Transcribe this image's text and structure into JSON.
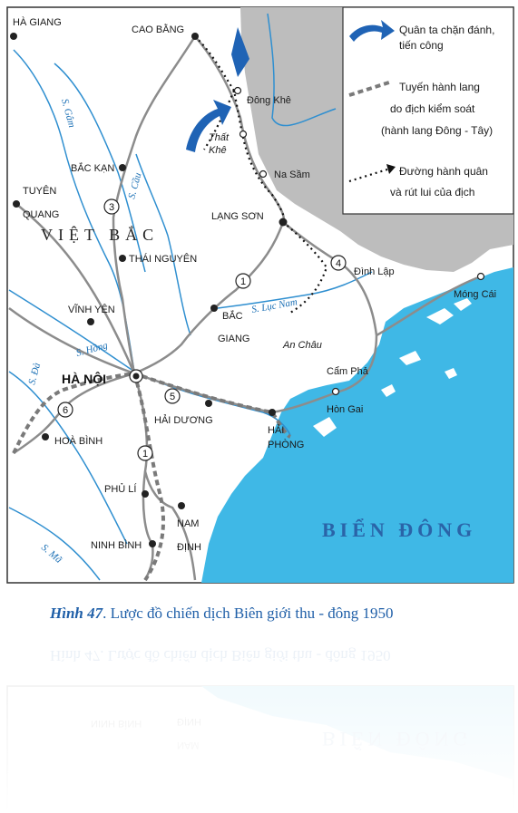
{
  "caption": {
    "figure": "Hình 47",
    "text": ". Lược đồ chiến dịch Biên giới thu - đông 1950"
  },
  "legend": {
    "attack": "Quân ta chặn đánh,",
    "attack2": "tiến công",
    "corridor": "Tuyến hành lang",
    "corridor2": "do địch kiểm soát",
    "corridor3": "(hành lang Đông - Tây)",
    "retreat": "Đường hành quân",
    "retreat2": "và rút lui của địch"
  },
  "places": {
    "ha_giang": "HÀ GIANG",
    "cao_bang": "CAO BẰNG",
    "dong_khe": "Đông Khê",
    "that_khe_1": "Thất",
    "that_khe_2": "Khê",
    "na_sam": "Na Sầm",
    "lang_son": "LẠNG SƠN",
    "bac_kan": "BẮC KẠN",
    "tuyen_quang_1": "TUYÊN",
    "tuyen_quang_2": "QUANG",
    "thai_nguyen": "THÁI NGUYÊN",
    "dinh_lap": "Đình Lập",
    "mong_cai": "Móng Cái",
    "vinh_yen": "VĨNH YÊN",
    "bac_giang_1": "BẮC",
    "bac_giang_2": "GIANG",
    "an_chau": "An Châu",
    "ha_noi": "HÀ NỘI",
    "cam_pha": "Cẩm Phả",
    "hon_gai": "Hòn Gai",
    "hai_duong": "HẢI DƯƠNG",
    "hai_phong_1": "HẢI",
    "hai_phong_2": "PHÒNG",
    "hoa_binh": "HOÀ BÌNH",
    "phu_li": "PHỦ LÍ",
    "nam_dinh_1": "NAM",
    "nam_dinh_2": "ĐỊNH",
    "ninh_binh": "NINH BÌNH"
  },
  "regions": {
    "viet_bac": "VIỆT BẮC",
    "bien_dong": "BIỂN ĐÔNG"
  },
  "rivers": {
    "gam": "S. Gâm",
    "cau": "S. Cầu",
    "luc_nam": "S. Lục Nam",
    "hong": "S. Hồng",
    "da": "S. Đà",
    "ma": "S. Mã"
  },
  "routes": {
    "r1a": "1",
    "r1b": "1",
    "r3": "3",
    "r4": "4",
    "r5": "5",
    "r6": "6"
  },
  "colors": {
    "sea": "#3fb8e6",
    "foreign": "#bdbdbd",
    "river": "#2f8fd0",
    "road": "#8c8c8c",
    "arrow": "#1f63b5",
    "caption": "#1f5fa8"
  }
}
